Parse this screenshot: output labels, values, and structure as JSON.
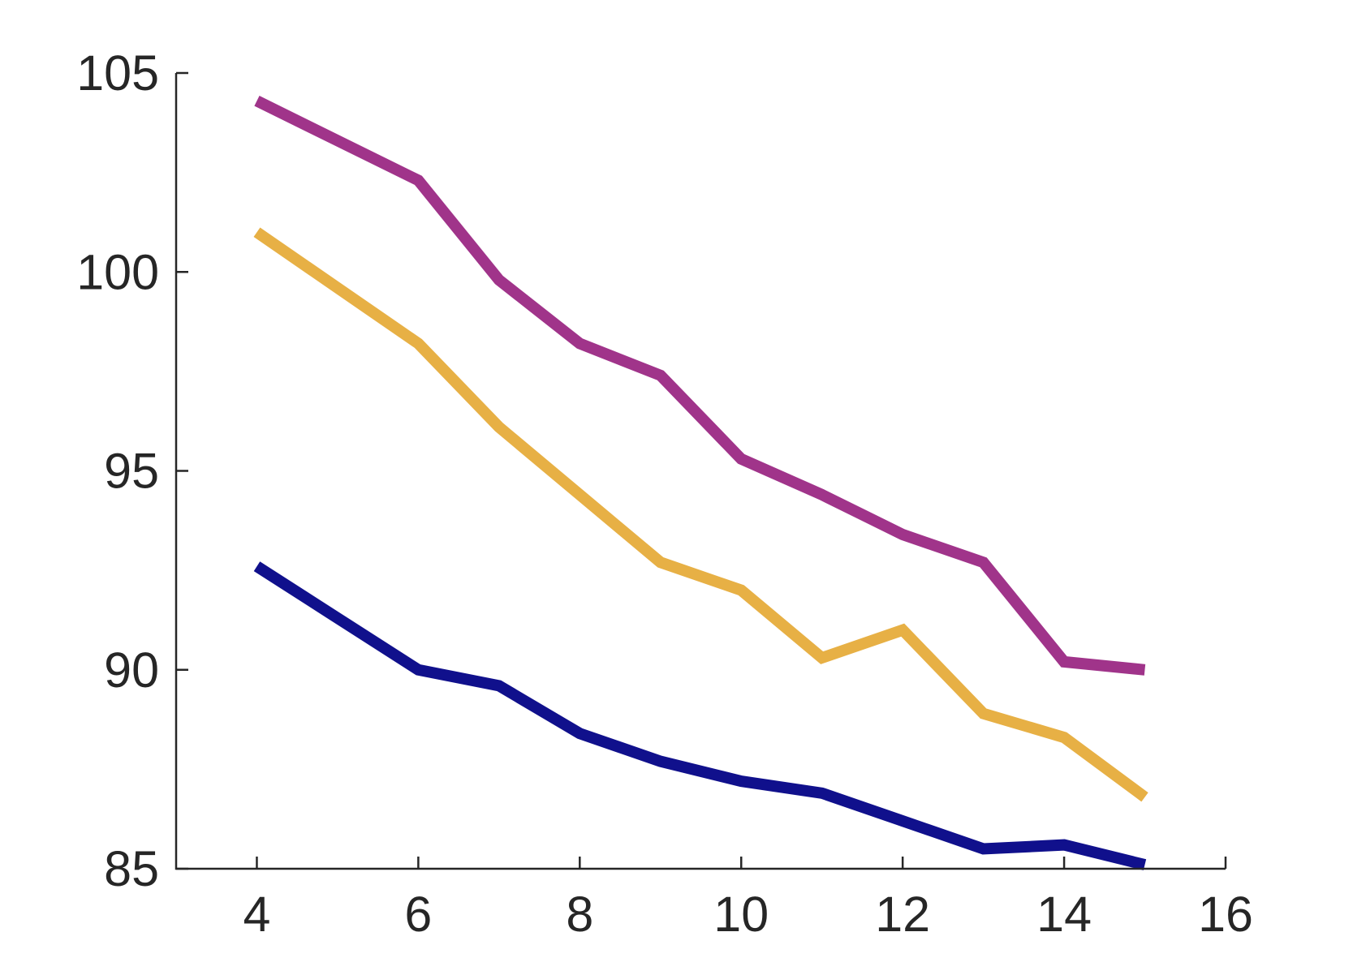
{
  "chart_data": {
    "type": "line",
    "title": "",
    "xlabel": "",
    "ylabel": "",
    "grid": false,
    "legend": "none",
    "background": "#FFFFFF",
    "axis_color": "#262626",
    "tick_label_color": "#262626",
    "xlim": [
      3,
      16
    ],
    "ylim": [
      85,
      105
    ],
    "x_ticks": [
      "4",
      "6",
      "8",
      "10",
      "12",
      "14",
      "16"
    ],
    "x_tick_values": [
      4,
      6,
      8,
      10,
      12,
      14,
      16
    ],
    "y_ticks": [
      "85",
      "90",
      "95",
      "100",
      "105"
    ],
    "y_tick_values": [
      85,
      90,
      95,
      100,
      105
    ],
    "x": [
      4,
      5,
      6,
      7,
      8,
      9,
      10,
      11,
      12,
      13,
      14,
      15
    ],
    "series": [
      {
        "name": "purple",
        "color": "#A0348A",
        "values": [
          104.3,
          103.3,
          102.3,
          99.8,
          98.2,
          97.4,
          95.3,
          94.4,
          93.4,
          92.7,
          90.2,
          90.0
        ]
      },
      {
        "name": "gold",
        "color": "#E7B045",
        "values": [
          101.0,
          99.6,
          98.2,
          96.1,
          94.4,
          92.7,
          92.0,
          90.3,
          91.0,
          88.9,
          88.3,
          86.8
        ]
      },
      {
        "name": "navy",
        "color": "#10108C",
        "values": [
          92.6,
          91.3,
          90.0,
          89.6,
          88.4,
          87.7,
          87.2,
          86.9,
          86.2,
          85.5,
          85.6,
          85.1
        ]
      }
    ],
    "line_width": 14,
    "spine_width": 2.5,
    "tick_length": 15
  }
}
